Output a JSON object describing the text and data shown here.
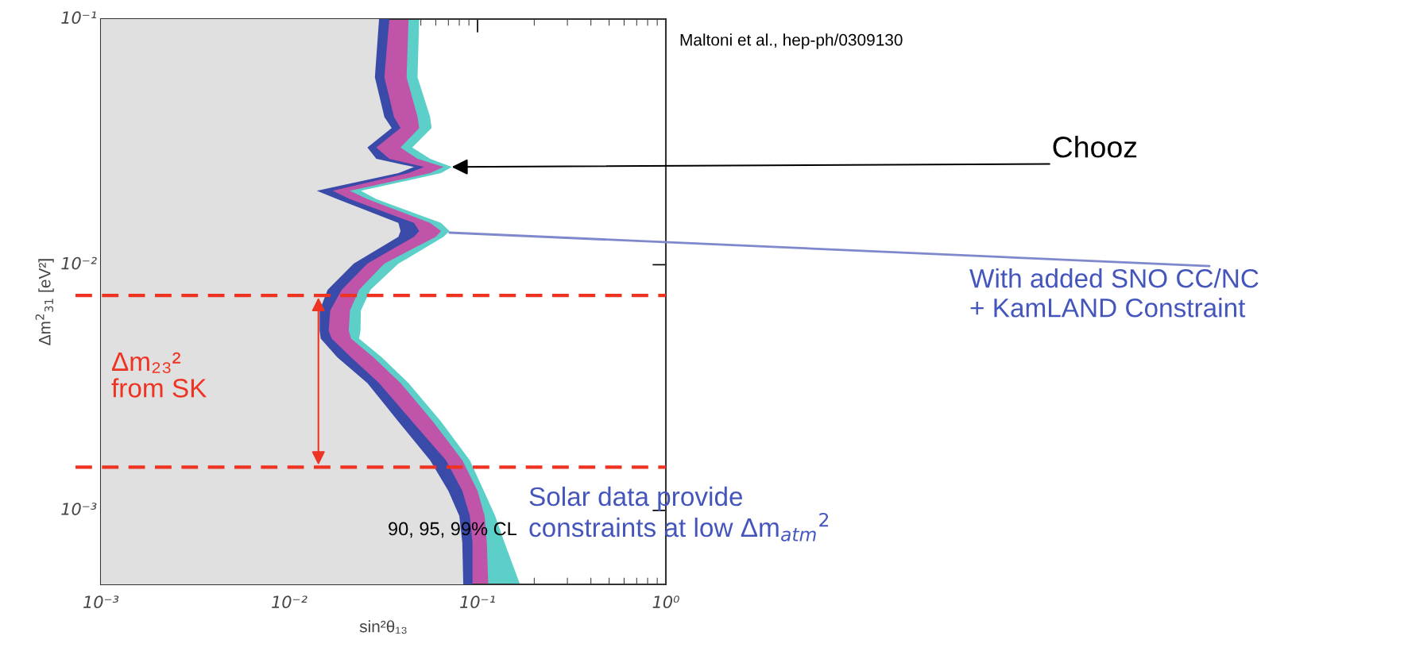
{
  "chart_data": {
    "type": "area",
    "orientation": "horizontal",
    "xlabel": "sin²θ₁₃",
    "ylabel": "Δm$^{2}$$_{31}$ [eV²]",
    "log": "xy",
    "xlim": [
      0.001,
      1
    ],
    "ylim": [
      0.0005,
      0.1
    ],
    "xticks": [
      {
        "value": 0.001,
        "label": "10⁻³"
      },
      {
        "value": 0.01,
        "label": "10⁻²"
      },
      {
        "value": 0.1,
        "label": "10⁻¹"
      },
      {
        "value": 1,
        "label": "10⁰"
      }
    ],
    "yticks": [
      {
        "value": 0.001,
        "label": "10⁻³"
      },
      {
        "value": 0.01,
        "label": "10⁻²"
      },
      {
        "value": 0.1,
        "label": "10⁻¹"
      }
    ],
    "series": [
      {
        "color": "#5ccfc8",
        "values": [
          0.049,
          0.048,
          0.056,
          0.057,
          0.045,
          0.056,
          0.073,
          0.064,
          0.024,
          0.029,
          0.064,
          0.071,
          0.066,
          0.038,
          0.027,
          0.024,
          0.0239,
          0.0235,
          0.031,
          0.043,
          0.064,
          0.091,
          0.108,
          0.124,
          0.139,
          0.168
        ],
        "x": [
          0.1,
          0.058,
          0.04,
          0.036,
          0.03,
          0.027,
          0.025,
          0.0236,
          0.02,
          0.0185,
          0.0148,
          0.0137,
          0.013,
          0.0101,
          0.0079,
          0.0065,
          0.0054,
          0.005,
          0.0042,
          0.0033,
          0.0023,
          0.0016,
          0.0012,
          0.00095,
          0.00074,
          0.0005
        ]
      },
      {
        "color": "#c054a8",
        "values": [
          0.043,
          0.042,
          0.048,
          0.049,
          0.039,
          0.048,
          0.066,
          0.056,
          0.021,
          0.026,
          0.056,
          0.064,
          0.06,
          0.032,
          0.0235,
          0.021,
          0.0207,
          0.0213,
          0.028,
          0.039,
          0.058,
          0.083,
          0.1,
          0.109,
          0.112,
          0.114
        ],
        "x": [
          0.1,
          0.058,
          0.04,
          0.036,
          0.03,
          0.027,
          0.025,
          0.0236,
          0.02,
          0.0185,
          0.0148,
          0.0137,
          0.013,
          0.0101,
          0.0079,
          0.0065,
          0.0054,
          0.005,
          0.0042,
          0.0033,
          0.0023,
          0.0016,
          0.0012,
          0.00095,
          0.00074,
          0.0005
        ]
      },
      {
        "color": "#3a4aa8",
        "values": [
          0.034,
          0.032,
          0.036,
          0.039,
          0.029,
          0.034,
          0.052,
          0.043,
          0.017,
          0.021,
          0.046,
          0.049,
          0.046,
          0.026,
          0.019,
          0.0165,
          0.0162,
          0.0168,
          0.0213,
          0.03,
          0.045,
          0.068,
          0.083,
          0.091,
          0.094,
          0.094
        ],
        "x": [
          0.1,
          0.058,
          0.04,
          0.036,
          0.03,
          0.027,
          0.025,
          0.0236,
          0.02,
          0.0185,
          0.0148,
          0.0137,
          0.013,
          0.0101,
          0.0079,
          0.0065,
          0.0054,
          0.005,
          0.0042,
          0.0033,
          0.0023,
          0.0016,
          0.0012,
          0.00095,
          0.00074,
          0.0005
        ]
      },
      {
        "color": "#e0e0e0",
        "values": [
          0.03,
          0.0285,
          0.032,
          0.035,
          0.026,
          0.029,
          0.046,
          0.038,
          0.014,
          0.018,
          0.038,
          0.039,
          0.038,
          0.022,
          0.016,
          0.0145,
          0.0145,
          0.0147,
          0.018,
          0.026,
          0.038,
          0.056,
          0.07,
          0.08,
          0.083,
          0.084
        ],
        "x": [
          0.1,
          0.058,
          0.04,
          0.036,
          0.03,
          0.027,
          0.025,
          0.0236,
          0.02,
          0.0185,
          0.0148,
          0.0137,
          0.013,
          0.0101,
          0.0079,
          0.0065,
          0.0054,
          0.005,
          0.0042,
          0.0033,
          0.0023,
          0.0016,
          0.0012,
          0.00095,
          0.00074,
          0.0005
        ]
      }
    ],
    "ref_lines": [
      {
        "axis": "y",
        "value": 0.0075,
        "color": "#ee3322",
        "line_style": "dashed"
      },
      {
        "axis": "y",
        "value": 0.0015,
        "color": "#ee3322",
        "line_style": "dashed"
      }
    ],
    "annotations": [
      "Maltoni et al., hep-ph/0309130",
      {
        "text": "Chooz",
        "x": 0.073,
        "y": 0.025
      },
      {
        "text": "With added SNO CC/NC\n+ KamLAND Constraint",
        "x": 0.071,
        "y": 0.0137
      },
      "Δm₂₃²\nfrom SK",
      "Solar data provide\nconstraints at low Δm$_{atm}$$^{2}$",
      "90, 95, 99% CL"
    ],
    "grid": false,
    "legend": false
  }
}
